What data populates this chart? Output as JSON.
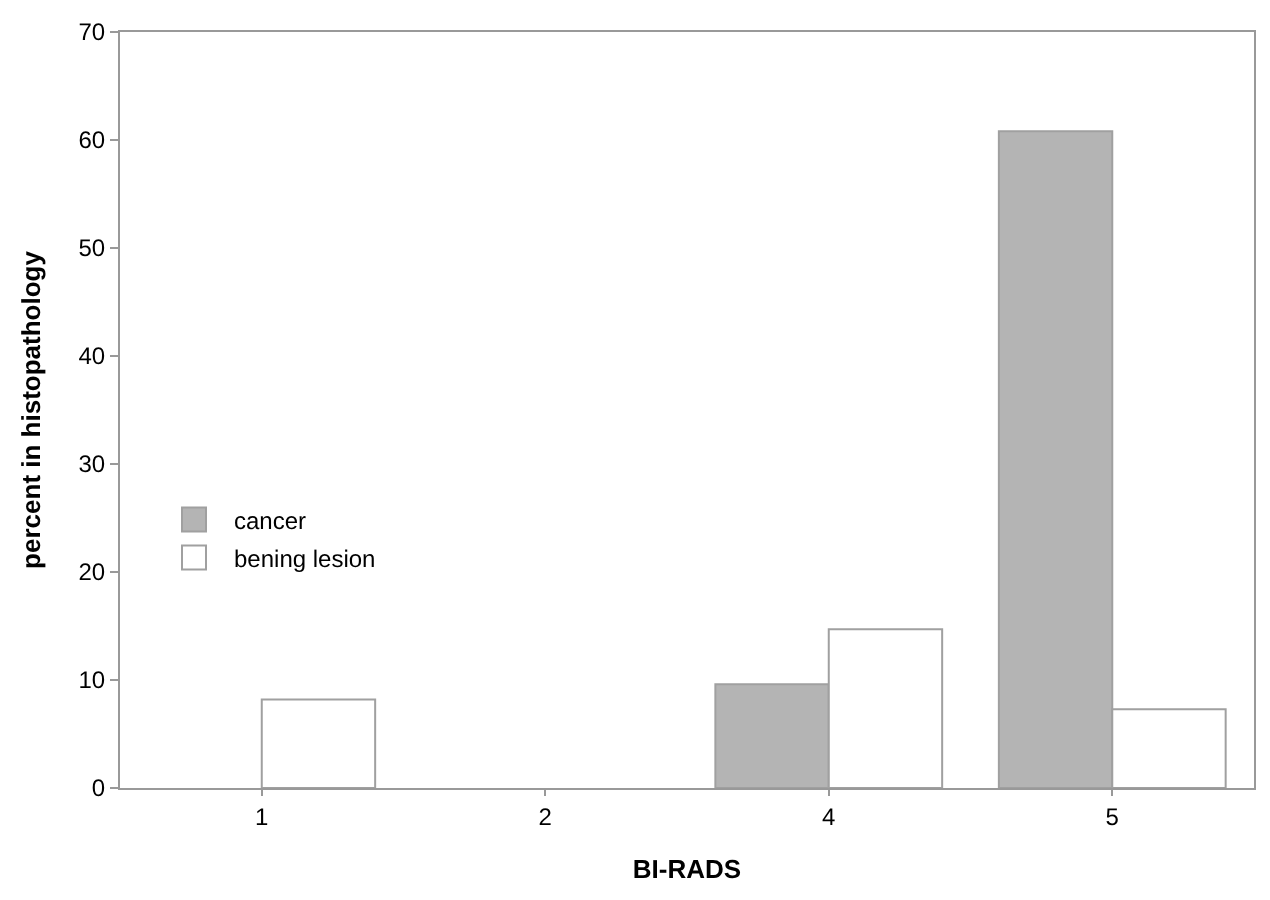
{
  "chart_data": {
    "type": "bar",
    "xlabel": "BI-RADS",
    "ylabel": "percent in histopathology",
    "categories": [
      "1",
      "2",
      "4",
      "5"
    ],
    "series": [
      {
        "name": "cancer",
        "color": "#b4b4b4",
        "values": [
          null,
          null,
          9.6,
          60.8
        ]
      },
      {
        "name": "bening lesion",
        "color": "#ffffff",
        "values": [
          8.2,
          null,
          14.7,
          7.3
        ]
      }
    ],
    "ylim": [
      0,
      70
    ],
    "yticks": [
      0,
      10,
      20,
      30,
      40,
      50,
      60,
      70
    ],
    "legend": "left"
  }
}
